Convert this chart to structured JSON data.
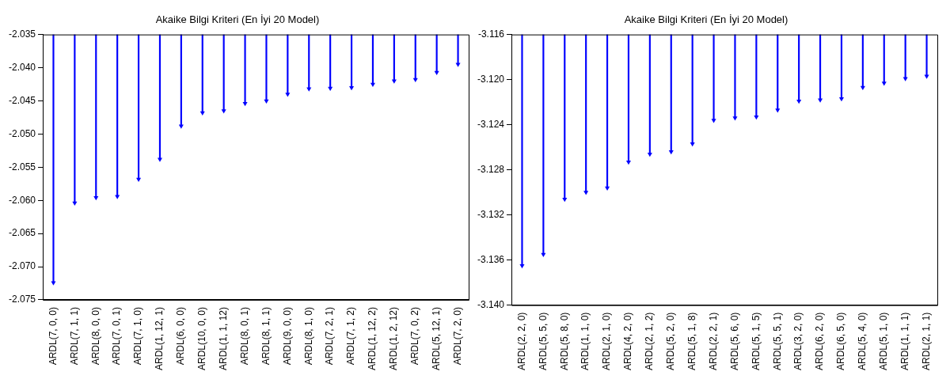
{
  "chart_data": [
    {
      "type": "lollipop",
      "title": "Akaike Bilgi Kriteri (En İyi 20 Model)",
      "categories": [
        "ARDL(7, 0, 0)",
        "ARDL(7, 1, 1)",
        "ARDL(8, 0, 0)",
        "ARDL(7, 0, 1)",
        "ARDL(7, 1, 0)",
        "ARDL(1, 12, 1)",
        "ARDL(6, 0, 0)",
        "ARDL(10, 0, 0)",
        "ARDL(1, 1, 12)",
        "ARDL(8, 0, 1)",
        "ARDL(8, 1, 1)",
        "ARDL(9, 0, 0)",
        "ARDL(8, 1, 0)",
        "ARDL(7, 2, 1)",
        "ARDL(7, 1, 2)",
        "ARDL(1, 12, 2)",
        "ARDL(1, 2, 12)",
        "ARDL(7, 0, 2)",
        "ARDL(5, 12, 1)",
        "ARDL(7, 2, 0)"
      ],
      "values": [
        -2.0724,
        -2.0604,
        -2.0596,
        -2.0594,
        -2.0568,
        -2.0538,
        -2.0488,
        -2.0468,
        -2.0465,
        -2.0454,
        -2.045,
        -2.044,
        -2.0432,
        -2.0431,
        -2.043,
        -2.0425,
        -2.042,
        -2.0418,
        -2.0407,
        -2.0395
      ],
      "color": "#0000ff",
      "marker": "triangle",
      "ylim": [
        -2.075,
        -2.035
      ],
      "yticks": [
        {
          "value": -2.075,
          "label": "-2.075"
        },
        {
          "value": -2.07,
          "label": "-2.070"
        },
        {
          "value": -2.065,
          "label": "-2.065"
        },
        {
          "value": -2.06,
          "label": "-2.060"
        },
        {
          "value": -2.055,
          "label": "-2.055"
        },
        {
          "value": -2.05,
          "label": "-2.050"
        },
        {
          "value": -2.045,
          "label": "-2.045"
        },
        {
          "value": -2.04,
          "label": "-2.040"
        },
        {
          "value": -2.035,
          "label": "-2.035"
        }
      ]
    },
    {
      "type": "lollipop",
      "title": "Akaike Bilgi Kriteri (En İyi 20 Model)",
      "categories": [
        "ARDL(2, 2, 0)",
        "ARDL(5, 5, 0)",
        "ARDL(5, 8, 0)",
        "ARDL(1, 1, 0)",
        "ARDL(2, 1, 0)",
        "ARDL(4, 2, 0)",
        "ARDL(2, 1, 2)",
        "ARDL(5, 2, 0)",
        "ARDL(5, 1, 8)",
        "ARDL(2, 2, 1)",
        "ARDL(5, 6, 0)",
        "ARDL(5, 1, 5)",
        "ARDL(5, 5, 1)",
        "ARDL(3, 2, 0)",
        "ARDL(6, 2, 0)",
        "ARDL(6, 5, 0)",
        "ARDL(5, 4, 0)",
        "ARDL(5, 1, 0)",
        "ARDL(1, 1, 1)",
        "ARDL(2, 1, 1)"
      ],
      "values": [
        -3.1365,
        -3.1355,
        -3.1306,
        -3.13,
        -3.1296,
        -3.1273,
        -3.1266,
        -3.1264,
        -3.1257,
        -3.1236,
        -3.1234,
        -3.1233,
        -3.1227,
        -3.1219,
        -3.1218,
        -3.1217,
        -3.1207,
        -3.1203,
        -3.1199,
        -3.1197
      ],
      "color": "#0000ff",
      "marker": "triangle",
      "ylim": [
        -3.14,
        -3.116
      ],
      "yticks": [
        {
          "value": -3.14,
          "label": "-3.140"
        },
        {
          "value": -3.136,
          "label": "-3.136"
        },
        {
          "value": -3.132,
          "label": "-3.132"
        },
        {
          "value": -3.128,
          "label": "-3.128"
        },
        {
          "value": -3.124,
          "label": "-3.124"
        },
        {
          "value": -3.12,
          "label": "-3.120"
        },
        {
          "value": -3.116,
          "label": "-3.116"
        }
      ]
    }
  ]
}
